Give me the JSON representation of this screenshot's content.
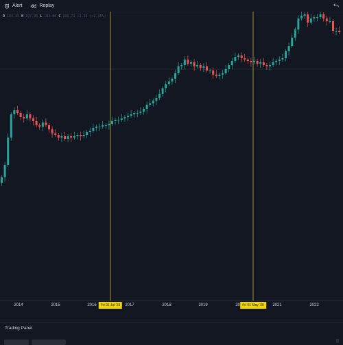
{
  "toolbar": {
    "alert_label": "Alert",
    "replay_label": "Replay",
    "alert_icon": "alarm-clock-icon",
    "replay_icon": "rewind-icon",
    "back_icon": "undo-arrow-icon"
  },
  "legend": {
    "o_label": "O",
    "h_label": "H",
    "l_label": "L",
    "c_label": "C",
    "o_value": "104.44",
    "h_value": "107.95",
    "l_value": "102.86",
    "c_value": "106.71",
    "change": "+2.56 (+2.45%)"
  },
  "colors": {
    "background": "#131722",
    "up": "#26a69a",
    "down": "#ef5350",
    "vline": "#b0a13a",
    "badge": "#f2d600"
  },
  "chart_data": {
    "type": "candlestick",
    "interval": "monthly",
    "x_ticks": [
      "2014",
      "2015",
      "2016",
      "2017",
      "2018",
      "2019",
      "2020",
      "2021",
      "2022"
    ],
    "marked_dates": [
      "Fri 01 Jul '16",
      "Fri 01 May '20"
    ],
    "y_relative_range": [
      0,
      100
    ],
    "price_path": [
      14,
      23,
      43,
      60,
      63,
      61,
      58,
      57,
      60,
      57,
      55,
      52,
      51,
      54,
      52,
      49,
      46,
      45,
      43,
      44,
      42,
      44,
      43,
      44,
      45,
      44,
      45,
      47,
      48,
      50,
      51,
      51,
      52,
      52,
      53,
      55,
      56,
      56,
      57,
      58,
      59,
      60,
      61,
      61,
      62,
      64,
      67,
      68,
      70,
      72,
      75,
      79,
      82,
      84,
      86,
      90,
      95,
      96,
      100,
      97,
      98,
      95,
      96,
      94,
      95,
      92,
      92,
      89,
      88,
      89,
      90,
      93,
      96,
      99,
      102,
      103,
      101,
      100,
      99,
      98,
      99,
      97,
      98,
      96,
      95,
      96,
      98,
      99,
      100,
      101,
      106,
      110,
      116,
      122,
      130,
      132,
      133,
      127,
      130,
      131,
      131,
      133,
      130,
      128,
      128,
      121,
      121,
      120
    ]
  },
  "panel": {
    "title": "Trading Panel"
  }
}
